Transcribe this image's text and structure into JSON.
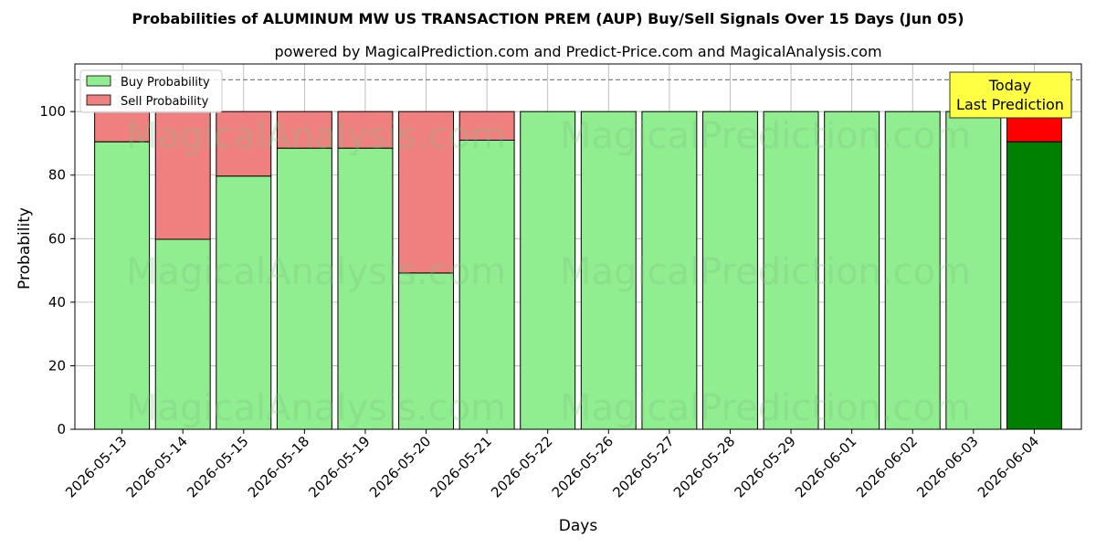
{
  "chart_data": {
    "type": "bar",
    "stacked": true,
    "title": "Probabilities of ALUMINUM MW US TRANSACTION PREM (AUP) Buy/Sell Signals Over 15 Days (Jun 05)",
    "subtitle": "powered by MagicalPrediction.com and Predict-Price.com and MagicalAnalysis.com",
    "xlabel": "Days",
    "ylabel": "Probability",
    "ylim": [
      0,
      115
    ],
    "yticks": [
      0,
      20,
      40,
      60,
      80,
      100
    ],
    "reference_line": 110,
    "grid": true,
    "legend_position": "top-left",
    "categories": [
      "2026-05-13",
      "2026-05-14",
      "2026-05-15",
      "2026-05-18",
      "2026-05-19",
      "2026-05-20",
      "2026-05-21",
      "2026-05-22",
      "2026-05-26",
      "2026-05-27",
      "2026-05-28",
      "2026-05-29",
      "2026-06-01",
      "2026-06-02",
      "2026-06-03",
      "2026-06-04"
    ],
    "series": [
      {
        "name": "Buy Probability",
        "color": "#90ee90",
        "values": [
          90.5,
          59.8,
          79.7,
          88.5,
          88.5,
          49.2,
          91.0,
          100,
          100,
          100,
          100,
          100,
          100,
          100,
          100,
          90.5
        ]
      },
      {
        "name": "Sell Probability",
        "color": "#f08080",
        "values": [
          9.5,
          40.2,
          20.3,
          11.5,
          11.5,
          50.8,
          9.0,
          0,
          0,
          0,
          0,
          0,
          0,
          0,
          0,
          9.5
        ]
      }
    ],
    "highlight": {
      "index": 15,
      "buy_color": "#008000",
      "sell_color": "#ff0000"
    },
    "annotation": {
      "lines": [
        "Today",
        "Last Prediction"
      ],
      "color": "#ffff44"
    },
    "watermarks": [
      "MagicalAnalysis.com",
      "MagicalPrediction.com"
    ]
  }
}
